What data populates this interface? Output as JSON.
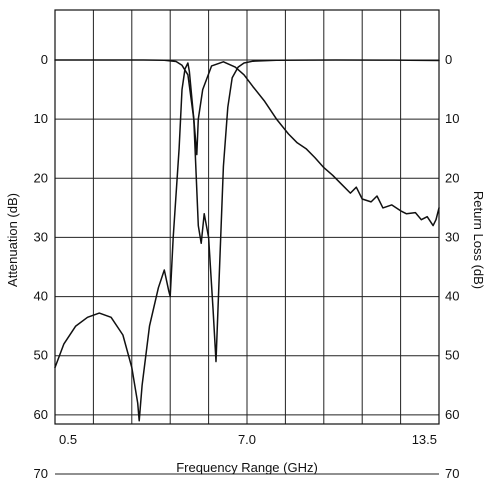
{
  "chart_data": {
    "type": "line",
    "title": "",
    "xlabel": "Frequency Range (GHz)",
    "ylabel_left": "Attenuation (dB)",
    "ylabel_right": "Return Loss (dB)",
    "xlim": [
      0.5,
      13.5
    ],
    "ylim": [
      0,
      70
    ],
    "y_inverted": true,
    "grid": true,
    "x_tick_labels": [
      {
        "value": 0.5,
        "label": "0.5"
      },
      {
        "value": 7.0,
        "label": "7.0"
      },
      {
        "value": 13.5,
        "label": "13.5"
      }
    ],
    "x_gridlines": [
      0.5,
      1.8,
      3.1,
      4.4,
      5.7,
      7.0,
      8.3,
      9.6,
      10.9,
      12.2,
      13.5
    ],
    "y_ticks_left": [
      {
        "value": 0,
        "label": "0"
      },
      {
        "value": 10,
        "label": "10"
      },
      {
        "value": 20,
        "label": "20"
      },
      {
        "value": 30,
        "label": "30"
      },
      {
        "value": 40,
        "label": "40"
      },
      {
        "value": 50,
        "label": "50"
      },
      {
        "value": 60,
        "label": "60"
      },
      {
        "value": 70,
        "label": "70"
      }
    ],
    "y_ticks_right": [
      {
        "value": 0,
        "label": "0"
      },
      {
        "value": 10,
        "label": "10"
      },
      {
        "value": 20,
        "label": "20"
      },
      {
        "value": 30,
        "label": "30"
      },
      {
        "value": 40,
        "label": "40"
      },
      {
        "value": 50,
        "label": "50"
      },
      {
        "value": 60,
        "label": "60"
      },
      {
        "value": 70,
        "label": "70"
      }
    ],
    "series": [
      {
        "points": [
          [
            0.5,
            0
          ],
          [
            1.5,
            0
          ],
          [
            2.5,
            0
          ],
          [
            3.5,
            0
          ],
          [
            4.2,
            0.05
          ],
          [
            4.6,
            0.25
          ],
          [
            4.8,
            0.9
          ],
          [
            5.0,
            2.5
          ],
          [
            5.2,
            10
          ],
          [
            5.35,
            28
          ],
          [
            5.45,
            31
          ],
          [
            5.55,
            26
          ],
          [
            5.7,
            30
          ],
          [
            5.85,
            42
          ],
          [
            5.95,
            51
          ],
          [
            6.05,
            38
          ],
          [
            6.2,
            18
          ],
          [
            6.35,
            8
          ],
          [
            6.5,
            3
          ],
          [
            6.7,
            1.2
          ],
          [
            6.9,
            0.5
          ],
          [
            7.2,
            0.2
          ],
          [
            8.0,
            0.05
          ],
          [
            10.0,
            0
          ],
          [
            12.0,
            0.02
          ],
          [
            13.5,
            0.08
          ]
        ]
      },
      {
        "points": [
          [
            0.5,
            52
          ],
          [
            0.8,
            48
          ],
          [
            1.2,
            45
          ],
          [
            1.6,
            43.5
          ],
          [
            2.0,
            42.8
          ],
          [
            2.4,
            43.5
          ],
          [
            2.8,
            46.5
          ],
          [
            3.1,
            52
          ],
          [
            3.3,
            58
          ],
          [
            3.35,
            61
          ],
          [
            3.45,
            55
          ],
          [
            3.7,
            45
          ],
          [
            4.0,
            38.5
          ],
          [
            4.2,
            35.5
          ],
          [
            4.35,
            39
          ],
          [
            4.4,
            40
          ],
          [
            4.5,
            30
          ],
          [
            4.7,
            15
          ],
          [
            4.8,
            5
          ],
          [
            4.9,
            1.5
          ],
          [
            5.0,
            0.5
          ],
          [
            5.05,
            2
          ],
          [
            5.2,
            10
          ],
          [
            5.3,
            16
          ],
          [
            5.35,
            10
          ],
          [
            5.5,
            5
          ],
          [
            5.8,
            1
          ],
          [
            6.2,
            0.3
          ],
          [
            6.6,
            1.2
          ],
          [
            6.9,
            2.5
          ],
          [
            7.2,
            4.5
          ],
          [
            7.6,
            7
          ],
          [
            8.0,
            10
          ],
          [
            8.4,
            12.5
          ],
          [
            8.7,
            14
          ],
          [
            9.0,
            15
          ],
          [
            9.3,
            16.5
          ],
          [
            9.6,
            18.2
          ],
          [
            9.9,
            19.5
          ],
          [
            10.2,
            21
          ],
          [
            10.5,
            22.5
          ],
          [
            10.7,
            21.5
          ],
          [
            10.9,
            23.5
          ],
          [
            11.2,
            24
          ],
          [
            11.4,
            23
          ],
          [
            11.6,
            25
          ],
          [
            11.9,
            24.5
          ],
          [
            12.2,
            25.5
          ],
          [
            12.4,
            26
          ],
          [
            12.7,
            25.8
          ],
          [
            12.9,
            27
          ],
          [
            13.1,
            26.5
          ],
          [
            13.3,
            28
          ],
          [
            13.4,
            27
          ],
          [
            13.5,
            25
          ]
        ]
      }
    ]
  }
}
